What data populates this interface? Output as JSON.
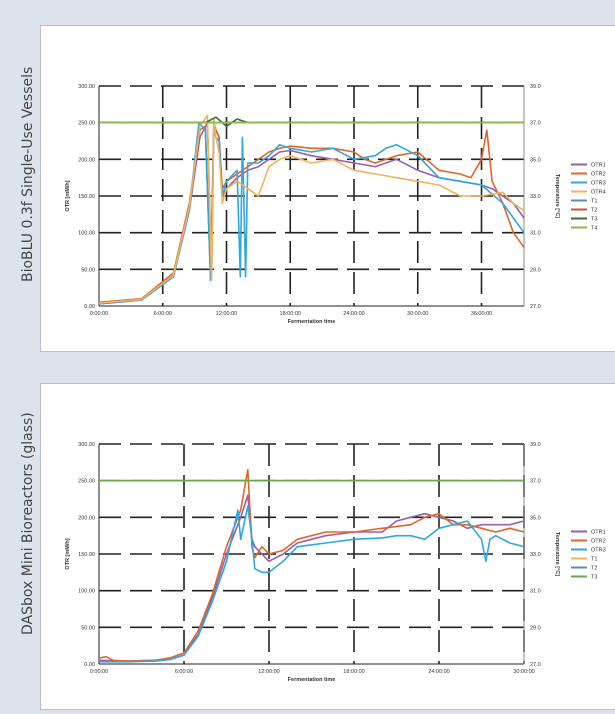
{
  "panels": [
    {
      "side_label": "BioBLU 0.3f Single-Use Vessels",
      "legend": [
        {
          "name": "OTR1",
          "color": "#9b5ea8"
        },
        {
          "name": "OTR2",
          "color": "#e0662a"
        },
        {
          "name": "OTR3",
          "color": "#2fa7df"
        },
        {
          "name": "OTR4",
          "color": "#f0b45a"
        },
        {
          "name": "T1",
          "color": "#5a8fb0"
        },
        {
          "name": "T2",
          "color": "#c4573b"
        },
        {
          "name": "T3",
          "color": "#3e6b2e"
        },
        {
          "name": "T4",
          "color": "#8ab84e"
        }
      ]
    },
    {
      "side_label": "DASbox Mini Bioreactors (glass)",
      "legend": [
        {
          "name": "OTR1",
          "color": "#9b5ea8"
        },
        {
          "name": "OTR2",
          "color": "#e0662a"
        },
        {
          "name": "OTR3",
          "color": "#2fa7df"
        },
        {
          "name": "T1",
          "color": "#f0b45a"
        },
        {
          "name": "T2",
          "color": "#5a8fb0"
        },
        {
          "name": "T3",
          "color": "#6aa84f"
        }
      ]
    }
  ],
  "chart_data": [
    {
      "type": "line",
      "xlabel": "Fermentation time",
      "ylabel": "OTR [mM/h]",
      "y2label": "Temperature [°C]",
      "xlim": [
        0,
        40
      ],
      "ylim": [
        0,
        300
      ],
      "y2lim": [
        27,
        39
      ],
      "xticks": [
        "0:00:00",
        "6:00:00",
        "12:00:00",
        "18:00:00",
        "24:00:00",
        "30:00:00",
        "36:00:00"
      ],
      "yticks": [
        "0.00",
        "50.00",
        "100.00",
        "150.00",
        "200.00",
        "250.00",
        "300.00"
      ],
      "y2ticks": [
        "27.0",
        "29.0",
        "31.0",
        "33.0",
        "35.0",
        "37.0",
        "39.0"
      ],
      "grid": true,
      "legend_position": "right",
      "series": [
        {
          "name": "OTR1",
          "axis": "left",
          "color": "#9b5ea8",
          "x": [
            0,
            4,
            7,
            8.5,
            9.5,
            10.2,
            10.6,
            10.8,
            11,
            11.3,
            11.6,
            12,
            13,
            14,
            15,
            16,
            17,
            18,
            20,
            22,
            24,
            26,
            28,
            30,
            32,
            34,
            36,
            37,
            38,
            39,
            40
          ],
          "y": [
            3,
            8,
            40,
            130,
            230,
            250,
            40,
            245,
            240,
            230,
            150,
            160,
            175,
            185,
            190,
            200,
            210,
            212,
            205,
            200,
            195,
            190,
            200,
            185,
            175,
            170,
            165,
            160,
            150,
            140,
            120
          ]
        },
        {
          "name": "OTR2",
          "axis": "left",
          "color": "#e0662a",
          "x": [
            0,
            4,
            7,
            8.5,
            9.5,
            10,
            10.5,
            10.8,
            11,
            11.3,
            11.6,
            12,
            14,
            16,
            17,
            18,
            20,
            22,
            24,
            25,
            26,
            28,
            30,
            32,
            34,
            35,
            36,
            36.5,
            37,
            38,
            39,
            40
          ],
          "y": [
            5,
            10,
            45,
            140,
            240,
            245,
            35,
            250,
            240,
            230,
            160,
            170,
            190,
            210,
            215,
            218,
            215,
            215,
            210,
            200,
            195,
            205,
            210,
            185,
            180,
            175,
            200,
            240,
            170,
            140,
            100,
            80
          ]
        },
        {
          "name": "OTR3",
          "axis": "left",
          "color": "#2fa7df",
          "x": [
            0,
            4,
            7,
            8.5,
            9.4,
            10,
            10.5,
            10.8,
            11,
            11.3,
            11.6,
            12,
            13,
            13.3,
            13.5,
            13.8,
            14,
            15,
            16,
            17,
            18,
            20,
            22,
            24,
            26,
            27,
            28,
            30,
            32,
            34,
            36,
            38,
            39,
            40
          ],
          "y": [
            3,
            8,
            40,
            130,
            250,
            240,
            35,
            240,
            230,
            225,
            150,
            170,
            185,
            40,
            230,
            40,
            195,
            195,
            205,
            220,
            215,
            210,
            215,
            200,
            205,
            215,
            220,
            205,
            175,
            170,
            165,
            140,
            120,
            100
          ]
        },
        {
          "name": "OTR4",
          "axis": "left",
          "color": "#f0b45a",
          "x": [
            0,
            4,
            7,
            8.5,
            9.5,
            10.2,
            10.6,
            10.8,
            11,
            11.3,
            11.6,
            12,
            13,
            14,
            15,
            16,
            17,
            18,
            20,
            22,
            24,
            26,
            28,
            30,
            32,
            34,
            36,
            38,
            39,
            40
          ],
          "y": [
            4,
            9,
            42,
            135,
            245,
            260,
            35,
            255,
            230,
            210,
            140,
            160,
            170,
            160,
            150,
            190,
            200,
            205,
            195,
            200,
            185,
            180,
            175,
            170,
            165,
            150,
            150,
            155,
            140,
            130
          ]
        },
        {
          "name": "T1",
          "axis": "right",
          "color": "#5a8fb0",
          "x": [
            0,
            40
          ],
          "y": [
            37,
            37
          ]
        },
        {
          "name": "T2",
          "axis": "right",
          "color": "#c4573b",
          "x": [
            0,
            40
          ],
          "y": [
            37,
            37
          ]
        },
        {
          "name": "T3",
          "axis": "right",
          "color": "#3e6b2e",
          "x": [
            0,
            10,
            11,
            12,
            13,
            14,
            40
          ],
          "y": [
            37,
            37,
            37.3,
            36.8,
            37.2,
            37,
            37
          ]
        },
        {
          "name": "T4",
          "axis": "right",
          "color": "#8ab84e",
          "x": [
            0,
            40
          ],
          "y": [
            37,
            37
          ]
        }
      ]
    },
    {
      "type": "line",
      "xlabel": "Fermentation time",
      "ylabel": "OTR [mM/h]",
      "y2label": "Temperature [°C]",
      "xlim": [
        0,
        30
      ],
      "ylim": [
        0,
        300
      ],
      "y2lim": [
        27,
        39
      ],
      "xticks": [
        "0:00:00",
        "6:00:00",
        "12:00:00",
        "18:00:00",
        "24:00:00",
        "30:00:00"
      ],
      "yticks": [
        "0.00",
        "50.00",
        "100.00",
        "150.00",
        "200.00",
        "250.00",
        "300.00"
      ],
      "y2ticks": [
        "27.0",
        "29.0",
        "31.0",
        "33.0",
        "35.0",
        "37.0",
        "39.0"
      ],
      "grid": true,
      "legend_position": "right",
      "series": [
        {
          "name": "OTR1",
          "axis": "left",
          "color": "#9b5ea8",
          "x": [
            0,
            2,
            4,
            5,
            6,
            7,
            8,
            9,
            10,
            10.5,
            10.8,
            11,
            11.5,
            12,
            13,
            14,
            15,
            16,
            18,
            20,
            21,
            22,
            23,
            24,
            25,
            26,
            27,
            28,
            29,
            30
          ],
          "y": [
            5,
            4,
            5,
            8,
            15,
            40,
            90,
            150,
            200,
            230,
            170,
            160,
            150,
            140,
            150,
            165,
            170,
            175,
            180,
            180,
            195,
            200,
            205,
            200,
            195,
            185,
            190,
            190,
            190,
            195
          ]
        },
        {
          "name": "OTR2",
          "axis": "left",
          "color": "#e0662a",
          "x": [
            0,
            0.5,
            1,
            2,
            4,
            5,
            6,
            7,
            8,
            9,
            10,
            10.5,
            10.8,
            11,
            11.5,
            12,
            13,
            14,
            15,
            16,
            18,
            20,
            22,
            23,
            24,
            25,
            26,
            27,
            28,
            29,
            30
          ],
          "y": [
            8,
            10,
            5,
            4,
            5,
            8,
            15,
            45,
            95,
            160,
            210,
            265,
            160,
            145,
            160,
            150,
            155,
            170,
            175,
            180,
            180,
            185,
            190,
            200,
            205,
            190,
            190,
            185,
            180,
            185,
            180
          ]
        },
        {
          "name": "OTR3",
          "axis": "left",
          "color": "#2fa7df",
          "x": [
            0,
            2,
            4,
            5,
            6,
            7,
            8,
            9,
            9.8,
            10,
            10.5,
            10.8,
            11,
            11.5,
            12,
            13,
            14,
            16,
            18,
            20,
            21,
            22,
            23,
            24,
            25,
            26,
            27,
            27.3,
            27.6,
            28,
            29,
            30
          ],
          "y": [
            3,
            3,
            4,
            6,
            12,
            38,
            85,
            140,
            210,
            170,
            215,
            170,
            130,
            125,
            125,
            140,
            160,
            165,
            170,
            172,
            175,
            175,
            170,
            185,
            190,
            195,
            170,
            140,
            170,
            175,
            165,
            160
          ]
        },
        {
          "name": "T1",
          "axis": "right",
          "color": "#f0b45a",
          "x": [
            0,
            30
          ],
          "y": [
            37,
            37
          ]
        },
        {
          "name": "T2",
          "axis": "right",
          "color": "#5a8fb0",
          "x": [
            0,
            30
          ],
          "y": [
            37,
            37
          ]
        },
        {
          "name": "T3",
          "axis": "right",
          "color": "#6aa84f",
          "x": [
            0,
            30
          ],
          "y": [
            37,
            37
          ]
        }
      ]
    }
  ]
}
